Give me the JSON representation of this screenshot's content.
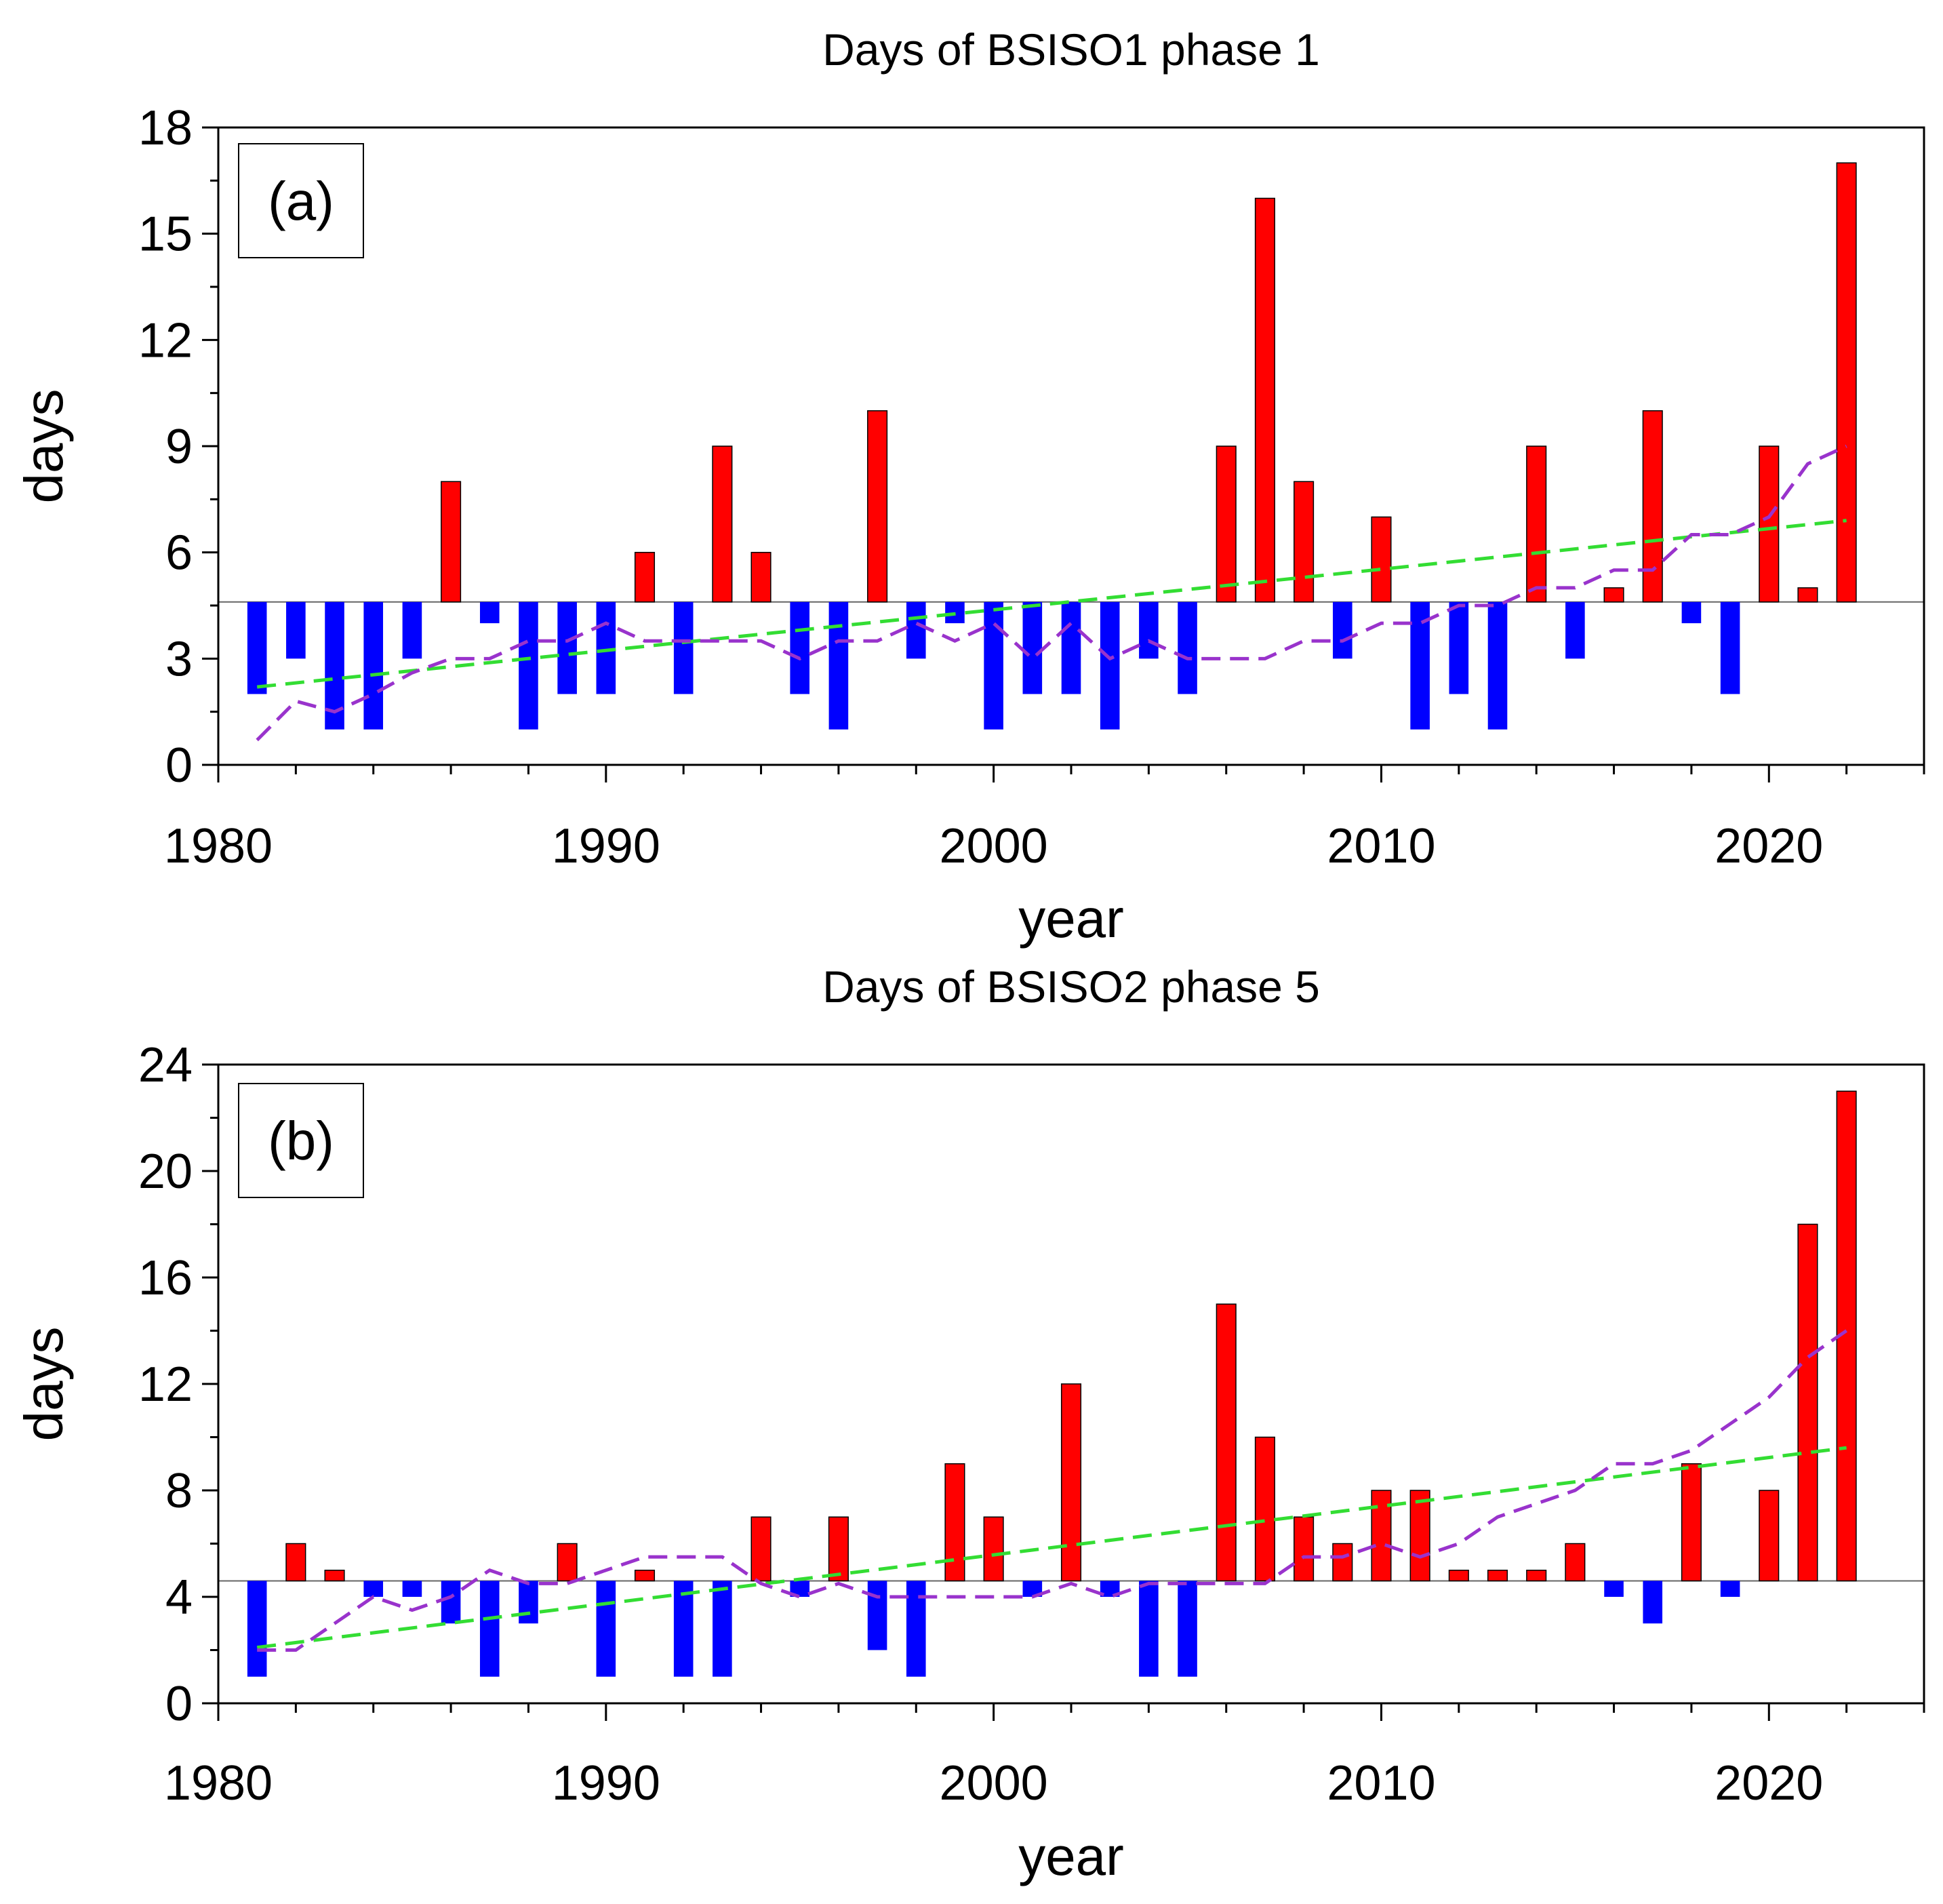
{
  "chart_data": [
    {
      "type": "bar",
      "panel_label": "(a)",
      "title": "Days of BSISO1 phase 1",
      "xlabel": "year",
      "ylabel": "days",
      "xlim": [
        1980,
        2024
      ],
      "ylim": [
        0,
        18
      ],
      "xticks": [
        1980,
        1990,
        2000,
        2010,
        2020
      ],
      "yticks": [
        0,
        3,
        6,
        9,
        12,
        15,
        18
      ],
      "baseline": 4.6,
      "above_color": "#ff0000",
      "below_color": "#0000ff",
      "years": [
        1981,
        1982,
        1983,
        1984,
        1985,
        1986,
        1987,
        1988,
        1989,
        1990,
        1991,
        1992,
        1993,
        1994,
        1995,
        1996,
        1997,
        1998,
        1999,
        2000,
        2001,
        2002,
        2003,
        2004,
        2005,
        2006,
        2007,
        2008,
        2009,
        2010,
        2011,
        2012,
        2013,
        2014,
        2015,
        2016,
        2017,
        2018,
        2019,
        2020,
        2021,
        2022
      ],
      "values": [
        2,
        3,
        1,
        1,
        3,
        8,
        4,
        1,
        2,
        2,
        6,
        2,
        9,
        6,
        2,
        1,
        10,
        3,
        4,
        1,
        2,
        2,
        1,
        3,
        2,
        9,
        16,
        8,
        3,
        7,
        1,
        2,
        1,
        9,
        3,
        5,
        10,
        4,
        2,
        9,
        5,
        17
      ],
      "series": [
        {
          "name": "trend",
          "color": "#33dd33",
          "x": [
            1981,
            2022
          ],
          "values": [
            2.2,
            6.9
          ]
        },
        {
          "name": "running mean",
          "color": "#9933cc",
          "x": [
            1981,
            1982,
            1983,
            1984,
            1985,
            1986,
            1987,
            1988,
            1989,
            1990,
            1991,
            1992,
            1993,
            1994,
            1995,
            1996,
            1997,
            1998,
            1999,
            2000,
            2001,
            2002,
            2003,
            2004,
            2005,
            2006,
            2007,
            2008,
            2009,
            2010,
            2011,
            2012,
            2013,
            2014,
            2015,
            2016,
            2017,
            2018,
            2019,
            2020,
            2021,
            2022
          ],
          "values": [
            0.7,
            1.8,
            1.5,
            2.0,
            2.6,
            3.0,
            3.0,
            3.5,
            3.5,
            4.0,
            3.5,
            3.5,
            3.5,
            3.5,
            3.0,
            3.5,
            3.5,
            4.0,
            3.5,
            4.0,
            3.0,
            4.0,
            3.0,
            3.5,
            3.0,
            3.0,
            3.0,
            3.5,
            3.5,
            4.0,
            4.0,
            4.5,
            4.5,
            5.0,
            5.0,
            5.5,
            5.5,
            6.5,
            6.5,
            7.0,
            8.5,
            9.0
          ]
        }
      ]
    },
    {
      "type": "bar",
      "panel_label": "(b)",
      "title": "Days of BSISO2 phase 5",
      "xlabel": "year",
      "ylabel": "days",
      "xlim": [
        1980,
        2024
      ],
      "ylim": [
        0,
        24
      ],
      "xticks": [
        1980,
        1990,
        2000,
        2010,
        2020
      ],
      "yticks": [
        0,
        4,
        8,
        12,
        16,
        20,
        24
      ],
      "baseline": 4.6,
      "above_color": "#ff0000",
      "below_color": "#0000ff",
      "years": [
        1981,
        1982,
        1983,
        1984,
        1985,
        1986,
        1987,
        1988,
        1989,
        1990,
        1991,
        1992,
        1993,
        1994,
        1995,
        1996,
        1997,
        1998,
        1999,
        2000,
        2001,
        2002,
        2003,
        2004,
        2005,
        2006,
        2007,
        2008,
        2009,
        2010,
        2011,
        2012,
        2013,
        2014,
        2015,
        2016,
        2017,
        2018,
        2019,
        2020,
        2021,
        2022
      ],
      "values": [
        1,
        6,
        5,
        4,
        4,
        3,
        1,
        3,
        6,
        1,
        5,
        1,
        1,
        7,
        4,
        7,
        2,
        1,
        9,
        7,
        4,
        12,
        4,
        1,
        1,
        15,
        10,
        7,
        6,
        8,
        8,
        5,
        5,
        5,
        6,
        4,
        3,
        9,
        4,
        8,
        18,
        23
      ],
      "series": [
        {
          "name": "trend",
          "color": "#33dd33",
          "x": [
            1981,
            2022
          ],
          "values": [
            2.1,
            9.6
          ]
        },
        {
          "name": "running mean",
          "color": "#9933cc",
          "x": [
            1981,
            1982,
            1983,
            1984,
            1985,
            1986,
            1987,
            1988,
            1989,
            1990,
            1991,
            1992,
            1993,
            1994,
            1995,
            1996,
            1997,
            1998,
            1999,
            2000,
            2001,
            2002,
            2003,
            2004,
            2005,
            2006,
            2007,
            2008,
            2009,
            2010,
            2011,
            2012,
            2013,
            2014,
            2015,
            2016,
            2017,
            2018,
            2019,
            2020,
            2021,
            2022
          ],
          "values": [
            2.0,
            2.0,
            3.0,
            4.0,
            3.5,
            4.0,
            5.0,
            4.5,
            4.5,
            5.0,
            5.5,
            5.5,
            5.5,
            4.5,
            4.0,
            4.5,
            4.0,
            4.0,
            4.0,
            4.0,
            4.0,
            4.5,
            4.0,
            4.5,
            4.5,
            4.5,
            4.5,
            5.5,
            5.5,
            6.0,
            5.5,
            6.0,
            7.0,
            7.5,
            8.0,
            9.0,
            9.0,
            9.5,
            10.5,
            11.5,
            13.0,
            14.0
          ]
        }
      ]
    }
  ]
}
